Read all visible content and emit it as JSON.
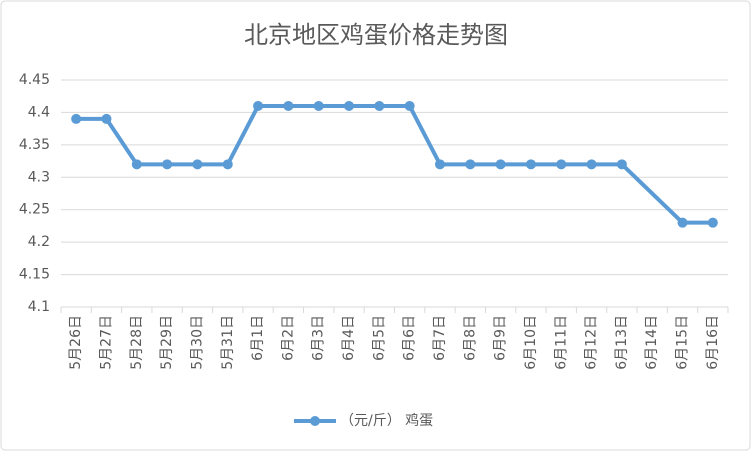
{
  "chart_data": {
    "type": "line",
    "title": "北京地区鸡蛋价格走势图",
    "categories": [
      "5月26日",
      "5月27日",
      "5月28日",
      "5月29日",
      "5月30日",
      "5月31日",
      "6月1日",
      "6月2日",
      "6月3日",
      "6月4日",
      "6月5日",
      "6月6日",
      "6月7日",
      "6月8日",
      "6月9日",
      "6月10日",
      "6月11日",
      "6月12日",
      "6月13日",
      "6月14日",
      "6月15日",
      "6月16日"
    ],
    "series": [
      {
        "name": "（元/斤） 鸡蛋",
        "color": "#5b9bd5",
        "values": [
          4.39,
          4.39,
          4.32,
          4.32,
          4.32,
          4.32,
          4.41,
          4.41,
          4.41,
          4.41,
          4.41,
          4.41,
          4.32,
          4.32,
          4.32,
          4.32,
          4.32,
          4.32,
          4.32,
          null,
          4.23,
          4.23
        ]
      }
    ],
    "ylim": [
      4.1,
      4.45
    ],
    "yticks": [
      4.1,
      4.15,
      4.2,
      4.25,
      4.3,
      4.35,
      4.4,
      4.45
    ],
    "grid": true,
    "connect_gaps": true,
    "legend": "bottom"
  }
}
